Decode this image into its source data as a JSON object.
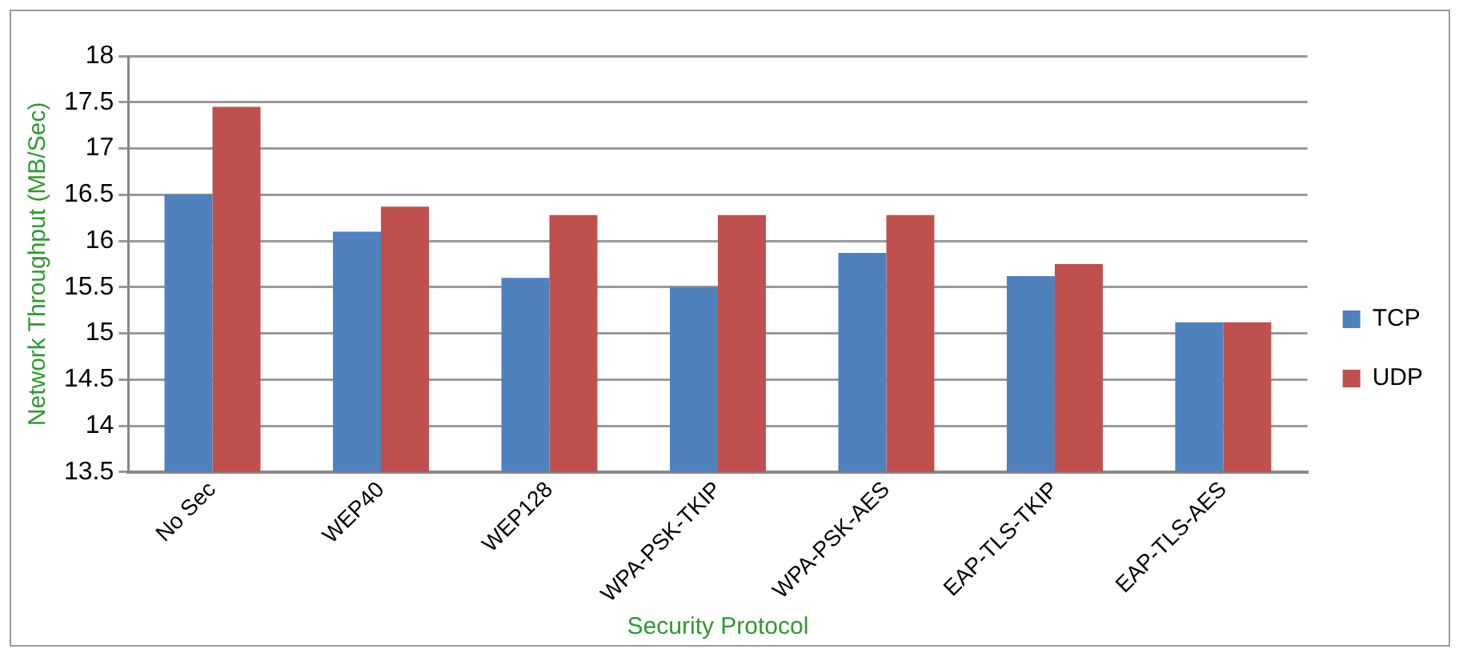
{
  "chart_data": {
    "type": "bar",
    "xlabel": "Security Protocol",
    "ylabel": "Network Throughput (MB/Sec)",
    "categories": [
      "No Sec",
      "WEP40",
      "WEP128",
      "WPA-PSK-TKIP",
      "WPA-PSK-AES",
      "EAP-TLS-TKIP",
      "EAP-TLS-AES"
    ],
    "series": [
      {
        "name": "TCP",
        "color": "#4f81bd",
        "values": [
          16.5,
          16.1,
          15.6,
          15.5,
          15.87,
          15.62,
          15.12
        ]
      },
      {
        "name": "UDP",
        "color": "#c0504d",
        "values": [
          17.45,
          16.37,
          16.28,
          16.28,
          16.28,
          15.75,
          15.12
        ]
      }
    ],
    "ylim": [
      13.5,
      18
    ],
    "yticks": [
      13.5,
      14,
      14.5,
      15,
      15.5,
      16,
      16.5,
      17,
      17.5,
      18
    ],
    "grid": "y",
    "legend": "right"
  }
}
